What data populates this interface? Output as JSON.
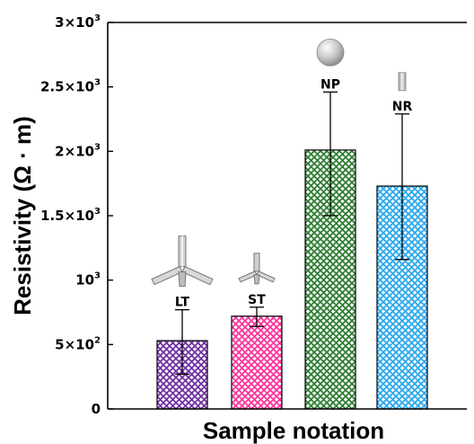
{
  "chart_data": {
    "type": "bar",
    "title": "",
    "xlabel": "Sample notation",
    "ylabel": "Resistivity (Ω · m)",
    "ylim": [
      0,
      3000
    ],
    "grid": false,
    "legend": "none",
    "yticks": [
      {
        "value": 0,
        "base": "0",
        "exp": ""
      },
      {
        "value": 500,
        "base": "5×10",
        "exp": "2"
      },
      {
        "value": 1000,
        "base": "10",
        "exp": "3"
      },
      {
        "value": 1500,
        "base": "1.5×10",
        "exp": "3"
      },
      {
        "value": 2000,
        "base": "2×10",
        "exp": "3"
      },
      {
        "value": 2500,
        "base": "2.5×10",
        "exp": "3"
      },
      {
        "value": 3000,
        "base": "3×10",
        "exp": "3"
      }
    ],
    "categories": [
      "LT",
      "ST",
      "NP",
      "NR"
    ],
    "values": [
      530,
      720,
      2010,
      1730
    ],
    "errors": [
      {
        "low": 270,
        "high": 770
      },
      {
        "low": 640,
        "high": 790
      },
      {
        "low": 1500,
        "high": 2460
      },
      {
        "low": 1160,
        "high": 2290
      }
    ],
    "colors": [
      "#7030a0",
      "#ff3399",
      "#2e7d32",
      "#29a8ef"
    ],
    "pattern": "crosshatch",
    "icons": [
      "tetrapod-icon",
      "small-tetrapod-icon",
      "nanoparticle-sphere-icon",
      "nanorod-icon"
    ]
  }
}
